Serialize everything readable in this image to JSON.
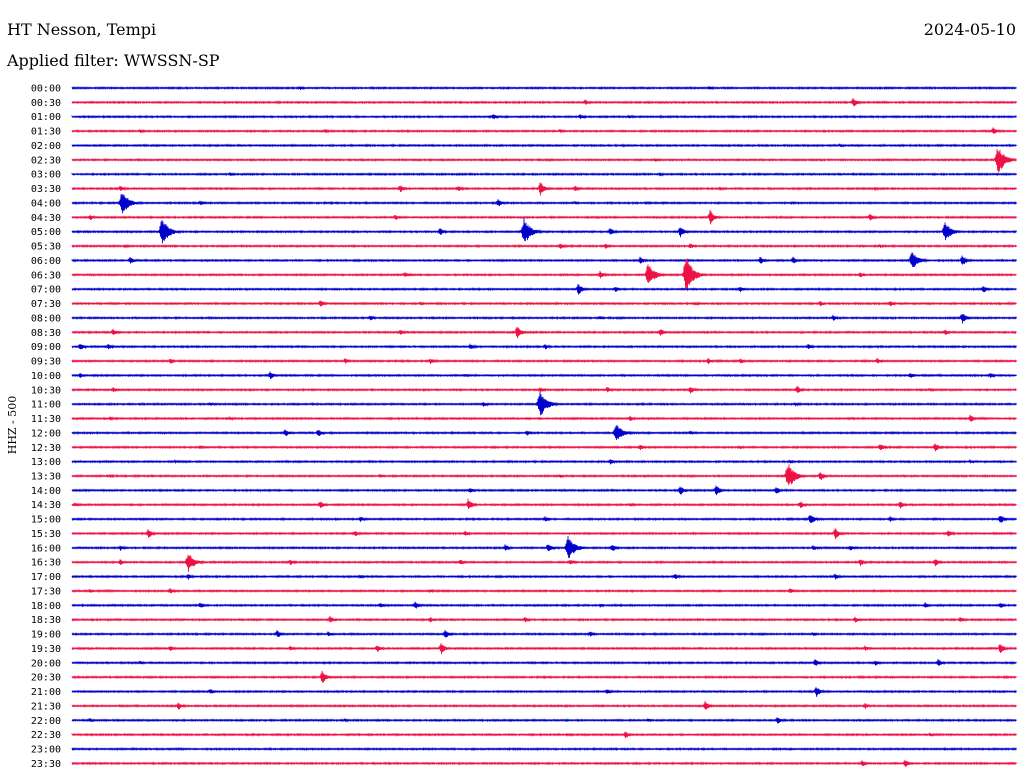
{
  "header": {
    "station": "HT Nesson, Tempi",
    "date": "2024-05-10",
    "filter": "Applied filter: WWSSN-SP"
  },
  "chart_data": {
    "type": "line",
    "title": "HT Nesson, Tempi",
    "ylabel": "HHZ - 500",
    "colors": [
      "#0000cc",
      "#ee1144"
    ],
    "rows": [
      {
        "label": "00:00",
        "events": [
          [
            300,
            2
          ],
          [
            710,
            2
          ]
        ]
      },
      {
        "label": "00:30",
        "events": [
          [
            585,
            3
          ],
          [
            853,
            5
          ]
        ]
      },
      {
        "label": "01:00",
        "events": [
          [
            493,
            3
          ],
          [
            580,
            3
          ],
          [
            629,
            2
          ]
        ]
      },
      {
        "label": "01:30",
        "events": [
          [
            140,
            2
          ],
          [
            325,
            2
          ],
          [
            560,
            2
          ],
          [
            993,
            4
          ]
        ]
      },
      {
        "label": "02:00",
        "events": [
          [
            840,
            2
          ]
        ]
      },
      {
        "label": "02:30",
        "events": [
          [
            655,
            2
          ],
          [
            998,
            15
          ]
        ]
      },
      {
        "label": "03:00",
        "events": [
          [
            230,
            2
          ],
          [
            660,
            2
          ]
        ]
      },
      {
        "label": "03:30",
        "events": [
          [
            120,
            3
          ],
          [
            400,
            4
          ],
          [
            458,
            3
          ],
          [
            540,
            8
          ],
          [
            575,
            3
          ],
          [
            720,
            2
          ],
          [
            875,
            2
          ]
        ]
      },
      {
        "label": "04:00",
        "events": [
          [
            122,
            13
          ],
          [
            200,
            3
          ],
          [
            498,
            4
          ],
          [
            575,
            2
          ]
        ]
      },
      {
        "label": "04:30",
        "events": [
          [
            90,
            3
          ],
          [
            395,
            3
          ],
          [
            710,
            8
          ],
          [
            870,
            4
          ]
        ]
      },
      {
        "label": "05:00",
        "events": [
          [
            162,
            14
          ],
          [
            440,
            4
          ],
          [
            524,
            14
          ],
          [
            610,
            4
          ],
          [
            680,
            6
          ],
          [
            945,
            10
          ]
        ]
      },
      {
        "label": "05:30",
        "events": [
          [
            125,
            2
          ],
          [
            560,
            3
          ],
          [
            605,
            3
          ],
          [
            690,
            3
          ],
          [
            880,
            2
          ]
        ]
      },
      {
        "label": "06:00",
        "events": [
          [
            130,
            4
          ],
          [
            640,
            4
          ],
          [
            760,
            4
          ],
          [
            793,
            4
          ],
          [
            912,
            9
          ],
          [
            962,
            6
          ]
        ]
      },
      {
        "label": "06:30",
        "events": [
          [
            405,
            3
          ],
          [
            600,
            4
          ],
          [
            648,
            12
          ],
          [
            686,
            20
          ],
          [
            860,
            3
          ]
        ]
      },
      {
        "label": "07:00",
        "events": [
          [
            578,
            6
          ],
          [
            615,
            3
          ],
          [
            740,
            3
          ],
          [
            983,
            4
          ]
        ]
      },
      {
        "label": "07:30",
        "events": [
          [
            320,
            4
          ],
          [
            420,
            2
          ],
          [
            695,
            2
          ],
          [
            820,
            3
          ],
          [
            890,
            3
          ]
        ]
      },
      {
        "label": "08:00",
        "events": [
          [
            370,
            3
          ],
          [
            600,
            2
          ],
          [
            833,
            3
          ],
          [
            962,
            6
          ]
        ]
      },
      {
        "label": "08:30",
        "events": [
          [
            113,
            4
          ],
          [
            400,
            3
          ],
          [
            517,
            7
          ],
          [
            660,
            4
          ],
          [
            945,
            3
          ]
        ]
      },
      {
        "label": "09:00",
        "events": [
          [
            80,
            4
          ],
          [
            108,
            3
          ],
          [
            470,
            3
          ],
          [
            545,
            3
          ],
          [
            808,
            3
          ]
        ]
      },
      {
        "label": "09:30",
        "events": [
          [
            170,
            3
          ],
          [
            345,
            3
          ],
          [
            430,
            3
          ],
          [
            708,
            3
          ],
          [
            740,
            3
          ],
          [
            877,
            3
          ]
        ]
      },
      {
        "label": "10:00",
        "events": [
          [
            80,
            3
          ],
          [
            270,
            4
          ],
          [
            465,
            2
          ],
          [
            910,
            3
          ],
          [
            990,
            3
          ]
        ]
      },
      {
        "label": "10:30",
        "events": [
          [
            113,
            3
          ],
          [
            540,
            3
          ],
          [
            607,
            3
          ],
          [
            690,
            4
          ],
          [
            797,
            4
          ],
          [
            930,
            2
          ]
        ]
      },
      {
        "label": "11:00",
        "events": [
          [
            210,
            2
          ],
          [
            483,
            3
          ],
          [
            540,
            14
          ],
          [
            795,
            2
          ]
        ]
      },
      {
        "label": "11:30",
        "events": [
          [
            110,
            2
          ],
          [
            230,
            2
          ],
          [
            630,
            3
          ],
          [
            970,
            4
          ]
        ]
      },
      {
        "label": "12:00",
        "events": [
          [
            285,
            4
          ],
          [
            318,
            4
          ],
          [
            527,
            3
          ],
          [
            616,
            10
          ],
          [
            690,
            2
          ]
        ]
      },
      {
        "label": "12:30",
        "events": [
          [
            200,
            2
          ],
          [
            640,
            3
          ],
          [
            740,
            2
          ],
          [
            880,
            4
          ],
          [
            935,
            5
          ]
        ]
      },
      {
        "label": "13:00",
        "events": [
          [
            175,
            2
          ],
          [
            610,
            3
          ],
          [
            790,
            2
          ],
          [
            970,
            2
          ]
        ]
      },
      {
        "label": "13:30",
        "events": [
          [
            110,
            2
          ],
          [
            380,
            2
          ],
          [
            560,
            2
          ],
          [
            788,
            14
          ],
          [
            820,
            5
          ]
        ]
      },
      {
        "label": "14:00",
        "events": [
          [
            470,
            3
          ],
          [
            680,
            5
          ],
          [
            716,
            6
          ],
          [
            776,
            4
          ]
        ]
      },
      {
        "label": "14:30",
        "events": [
          [
            75,
            2
          ],
          [
            320,
            4
          ],
          [
            468,
            6
          ],
          [
            630,
            2
          ],
          [
            800,
            4
          ],
          [
            900,
            4
          ]
        ]
      },
      {
        "label": "15:00",
        "events": [
          [
            360,
            3
          ],
          [
            545,
            3
          ],
          [
            810,
            6
          ],
          [
            890,
            3
          ],
          [
            1000,
            5
          ]
        ]
      },
      {
        "label": "15:30",
        "events": [
          [
            148,
            5
          ],
          [
            355,
            3
          ],
          [
            465,
            3
          ],
          [
            835,
            6
          ],
          [
            948,
            4
          ]
        ]
      },
      {
        "label": "16:00",
        "events": [
          [
            120,
            3
          ],
          [
            505,
            4
          ],
          [
            548,
            5
          ],
          [
            568,
            13
          ],
          [
            612,
            4
          ],
          [
            813,
            3
          ],
          [
            850,
            3
          ]
        ]
      },
      {
        "label": "16:30",
        "events": [
          [
            120,
            3
          ],
          [
            188,
            10
          ],
          [
            290,
            3
          ],
          [
            460,
            3
          ],
          [
            570,
            3
          ],
          [
            860,
            4
          ],
          [
            935,
            4
          ]
        ]
      },
      {
        "label": "17:00",
        "events": [
          [
            188,
            3
          ],
          [
            360,
            2
          ],
          [
            675,
            3
          ],
          [
            835,
            3
          ]
        ]
      },
      {
        "label": "17:30",
        "events": [
          [
            90,
            2
          ],
          [
            170,
            3
          ],
          [
            430,
            2
          ],
          [
            790,
            3
          ]
        ]
      },
      {
        "label": "18:00",
        "events": [
          [
            200,
            3
          ],
          [
            380,
            3
          ],
          [
            415,
            4
          ],
          [
            600,
            2
          ],
          [
            925,
            3
          ],
          [
            1000,
            3
          ]
        ]
      },
      {
        "label": "18:30",
        "events": [
          [
            330,
            4
          ],
          [
            430,
            3
          ],
          [
            525,
            3
          ],
          [
            855,
            3
          ],
          [
            960,
            3
          ]
        ]
      },
      {
        "label": "19:00",
        "events": [
          [
            277,
            4
          ],
          [
            328,
            3
          ],
          [
            445,
            5
          ],
          [
            590,
            3
          ],
          [
            813,
            2
          ]
        ]
      },
      {
        "label": "19:30",
        "events": [
          [
            170,
            3
          ],
          [
            290,
            3
          ],
          [
            377,
            4
          ],
          [
            441,
            6
          ],
          [
            865,
            3
          ],
          [
            1000,
            6
          ]
        ]
      },
      {
        "label": "20:00",
        "events": [
          [
            140,
            2
          ],
          [
            815,
            4
          ],
          [
            875,
            3
          ],
          [
            938,
            4
          ]
        ]
      },
      {
        "label": "20:30",
        "events": [
          [
            322,
            7
          ]
        ]
      },
      {
        "label": "21:00",
        "events": [
          [
            210,
            3
          ],
          [
            607,
            3
          ],
          [
            816,
            6
          ]
        ]
      },
      {
        "label": "21:30",
        "events": [
          [
            178,
            4
          ],
          [
            705,
            5
          ],
          [
            865,
            3
          ]
        ]
      },
      {
        "label": "22:00",
        "events": [
          [
            90,
            2
          ],
          [
            345,
            2
          ],
          [
            648,
            2
          ],
          [
            777,
            4
          ]
        ]
      },
      {
        "label": "22:30",
        "events": [
          [
            625,
            4
          ],
          [
            930,
            2
          ]
        ]
      },
      {
        "label": "23:00",
        "events": []
      },
      {
        "label": "23:30",
        "events": [
          [
            862,
            4
          ],
          [
            905,
            4
          ]
        ]
      }
    ]
  }
}
